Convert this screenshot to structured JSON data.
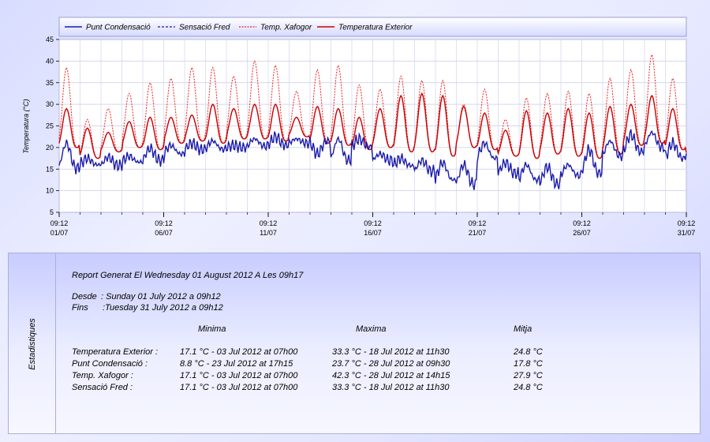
{
  "chart_data": {
    "type": "line",
    "ylabel": "Temperatura (°C)",
    "ylim": [
      5,
      45
    ],
    "yticks": [
      5,
      10,
      15,
      20,
      25,
      30,
      35,
      40,
      45
    ],
    "xticks": [
      {
        "day": 0,
        "time": "09:12",
        "date": "01/07"
      },
      {
        "day": 5,
        "time": "09:12",
        "date": "06/07"
      },
      {
        "day": 10,
        "time": "09:12",
        "date": "11/07"
      },
      {
        "day": 15,
        "time": "09:12",
        "date": "16/07"
      },
      {
        "day": 20,
        "time": "09:12",
        "date": "21/07"
      },
      {
        "day": 25,
        "time": "09:12",
        "date": "26/07"
      },
      {
        "day": 30,
        "time": "09:12",
        "date": "31/07"
      }
    ],
    "grid": true,
    "legend_position": "top",
    "series": [
      {
        "name": "Punt Condensació",
        "color": "#1a1aaa",
        "style": "solid",
        "daily_min": [
          15.2,
          16.0,
          15.8,
          16.6,
          17.0,
          18.5,
          19.5,
          19.6,
          20.0,
          20.3,
          20.5,
          21.0,
          21.5,
          17.0,
          20.2,
          17.0,
          15.8,
          14.5,
          12.5,
          11.5,
          17.5,
          14.0,
          12.5,
          11.5,
          13.5,
          14.0,
          18.0,
          19.0,
          20.0,
          17.5,
          18.5
        ],
        "daily_max": [
          21.0,
          17.5,
          17.8,
          18.0,
          19.8,
          20.5,
          21.0,
          21.5,
          20.5,
          22.0,
          22.5,
          22.0,
          18.5,
          22.0,
          22.0,
          18.5,
          17.5,
          17.0,
          16.5,
          16.0,
          21.0,
          16.5,
          16.0,
          15.5,
          16.0,
          19.5,
          21.5,
          23.0,
          23.5,
          21.0,
          20.0
        ]
      },
      {
        "name": "Sensació Fred",
        "color": "#1a1aaa",
        "style": "dashed",
        "daily_min": [
          20.0,
          17.5,
          19.0,
          20.0,
          19.5,
          21.0,
          21.5,
          21.0,
          22.0,
          22.0,
          21.5,
          22.5,
          21.0,
          20.5,
          19.5,
          20.0,
          19.0,
          19.0,
          18.0,
          20.0,
          19.5,
          18.0,
          17.5,
          18.5,
          18.0,
          17.5,
          18.5,
          20.5,
          21.0,
          19.5,
          17.5
        ],
        "daily_max": [
          29.0,
          24.5,
          23.5,
          26.0,
          27.0,
          27.0,
          27.5,
          30.0,
          29.0,
          30.0,
          30.0,
          27.0,
          29.5,
          29.0,
          27.0,
          29.0,
          32.0,
          32.5,
          32.0,
          29.5,
          28.0,
          24.0,
          28.5,
          28.0,
          29.0,
          28.0,
          29.5,
          30.0,
          32.0,
          29.0,
          29.5
        ]
      },
      {
        "name": "Temp. Xafogor",
        "color": "#ee2222",
        "style": "dotted",
        "daily_min": [
          20.0,
          17.5,
          19.0,
          20.0,
          19.5,
          21.0,
          21.5,
          21.0,
          22.0,
          22.0,
          21.5,
          22.5,
          21.0,
          20.5,
          19.5,
          20.0,
          19.0,
          19.0,
          18.0,
          20.0,
          19.5,
          18.0,
          17.5,
          18.5,
          18.0,
          17.5,
          18.5,
          20.5,
          21.0,
          19.5,
          17.5
        ],
        "daily_max": [
          38.5,
          26.5,
          29.0,
          32.5,
          35.0,
          36.0,
          38.5,
          38.5,
          36.5,
          40.0,
          39.0,
          33.0,
          38.0,
          39.0,
          34.5,
          33.5,
          36.5,
          35.5,
          35.5,
          30.0,
          33.5,
          26.5,
          31.5,
          32.5,
          33.0,
          32.5,
          36.0,
          38.0,
          41.5,
          36.0,
          37.0
        ]
      },
      {
        "name": "Temperatura Exterior",
        "color": "#cc0000",
        "style": "solid",
        "daily_min": [
          20.0,
          17.5,
          19.0,
          20.0,
          19.5,
          21.0,
          21.5,
          21.0,
          22.0,
          22.0,
          21.5,
          22.5,
          21.0,
          20.5,
          19.5,
          20.0,
          19.0,
          19.0,
          18.0,
          20.0,
          19.5,
          18.0,
          17.5,
          18.5,
          18.0,
          17.5,
          18.5,
          20.5,
          21.0,
          19.5,
          17.5
        ],
        "daily_max": [
          29.0,
          24.5,
          23.5,
          26.0,
          27.0,
          27.0,
          27.5,
          30.0,
          29.0,
          30.0,
          30.0,
          27.0,
          29.5,
          29.0,
          27.0,
          29.0,
          32.0,
          32.5,
          32.0,
          29.5,
          28.0,
          24.0,
          28.5,
          28.0,
          29.0,
          28.0,
          29.5,
          30.0,
          32.0,
          29.0,
          29.5
        ]
      }
    ]
  },
  "stats": {
    "side_label": "Estadistiques",
    "report_line": "Report Generat El Wednesday 01 August 2012 A Les 09h17",
    "desde_label": "Desde",
    "desde_value": ": Sunday 01 July 2012 a 09h12",
    "fins_label": "Fins",
    "fins_value": ":Tuesday 31 July 2012 a 09h12",
    "headers": {
      "min": "Minima",
      "max": "Maxima",
      "avg": "Mitja"
    },
    "rows": [
      {
        "label": "Temperatura Exterior :",
        "min": "17.1 °C - 03 Jul 2012 at 07h00",
        "max": "33.3 °C - 18 Jul 2012 at 11h30",
        "avg": "24.8 °C"
      },
      {
        "label": "Punt Condensació :",
        "min": "8.8 °C - 23 Jul 2012 at 17h15",
        "max": "23.7 °C - 28 Jul 2012 at 09h30",
        "avg": "17.8 °C"
      },
      {
        "label": "Temp. Xafogor :",
        "min": "17.1 °C - 03 Jul 2012 at 07h00",
        "max": "42.3 °C - 28 Jul 2012 at 14h15",
        "avg": "27.9 °C"
      },
      {
        "label": "Sensació Fred :",
        "min": "17.1 °C - 03 Jul 2012 at 07h00",
        "max": "33.3 °C - 18 Jul 2012 at 11h30",
        "avg": "24.8 °C"
      }
    ]
  }
}
